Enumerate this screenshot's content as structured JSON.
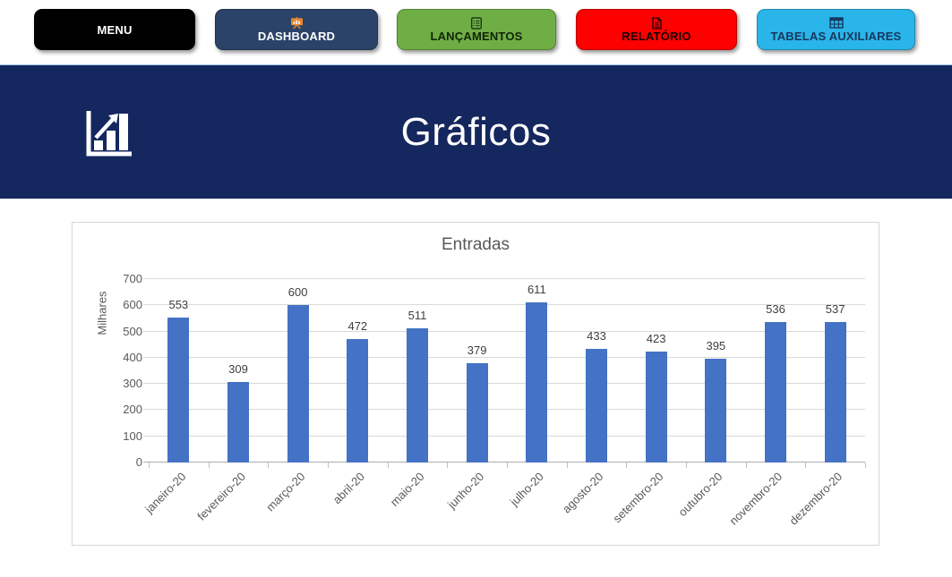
{
  "nav": {
    "buttons": [
      {
        "id": "menu",
        "label": "MENU",
        "bg": "#000000",
        "text_color": "#FFFFFF",
        "icon": null
      },
      {
        "id": "dashboard",
        "label": "DASHBOARD",
        "bg": "#2B4368",
        "text_color": "#FFFFFF",
        "icon": "dashboard-icon",
        "icon_color": "#E8862D"
      },
      {
        "id": "lancamentos",
        "label": "LANÇAMENTOS",
        "bg": "#6FAE44",
        "text_color": "#102508",
        "icon": "list-icon",
        "icon_color": "#1C3A14"
      },
      {
        "id": "relatorio",
        "label": "RELATÓRIO",
        "bg": "#FE0000",
        "text_color": "#1A0000",
        "icon": "document-icon",
        "icon_color": "#1A0000"
      },
      {
        "id": "tabelas",
        "label": "TABELAS AUXILIARES",
        "bg": "#29B5EA",
        "text_color": "#17375E",
        "icon": "table-icon",
        "icon_color": "#17375E"
      }
    ]
  },
  "header": {
    "title": "Gráficos",
    "bg": "#14275E",
    "icon": "bar-chart-up-icon",
    "icon_color": "#FFFFFF"
  },
  "chart_data": {
    "type": "bar",
    "title": "Entradas",
    "xlabel": "",
    "ylabel": "Milhares",
    "categories": [
      "janeiro-20",
      "fevereiro-20",
      "março-20",
      "abril-20",
      "maio-20",
      "junho-20",
      "julho-20",
      "agosto-20",
      "setembro-20",
      "outubro-20",
      "novembro-20",
      "dezembro-20"
    ],
    "values": [
      553,
      309,
      600,
      472,
      511,
      379,
      611,
      433,
      423,
      395,
      536,
      537
    ],
    "ylim": [
      0,
      700
    ],
    "ytick_step": 100,
    "grid": true,
    "legend_position": "none",
    "bar_color": "#4472C4",
    "colors": {
      "title": "#595959",
      "axis_text": "#595959",
      "value_label": "#404040",
      "gridline": "#D9D9D9",
      "axis_line": "#ABABAB"
    }
  }
}
